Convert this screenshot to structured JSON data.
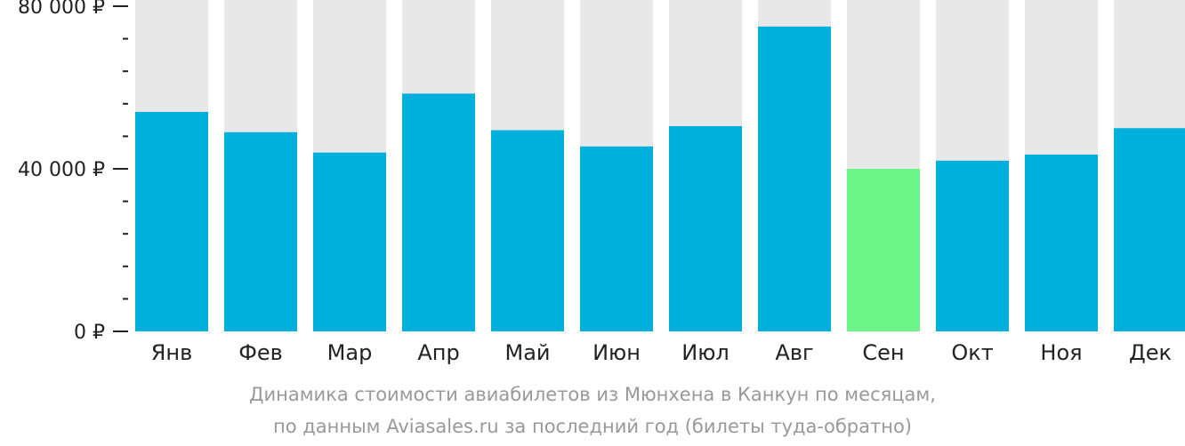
{
  "chart_data": {
    "type": "bar",
    "categories": [
      "Янв",
      "Фев",
      "Мар",
      "Апр",
      "Май",
      "Июн",
      "Июл",
      "Авг",
      "Сен",
      "Окт",
      "Ноя",
      "Дек"
    ],
    "values": [
      54000,
      49000,
      44000,
      58500,
      49500,
      45500,
      50500,
      75000,
      40000,
      42000,
      43500,
      50000
    ],
    "ylim": [
      0,
      80000
    ],
    "yticks": [
      {
        "value": 0,
        "label": "0 ₽"
      },
      {
        "value": 40000,
        "label": "40 000 ₽"
      },
      {
        "value": 80000,
        "label": "80 000 ₽"
      }
    ],
    "minor_tick_step": 8000,
    "highlight_index": 8,
    "grid": false,
    "legend": "none",
    "colors": {
      "bar": "#00b0dc",
      "highlight": "#6ef58a",
      "track": "#e8e8e8",
      "axis": "#222222"
    },
    "caption": [
      "Динамика стоимости авиабилетов из Мюнхена в Канкун по месяцам,",
      "по данным Aviasales.ru за последний год (билеты туда-обратно)"
    ]
  }
}
